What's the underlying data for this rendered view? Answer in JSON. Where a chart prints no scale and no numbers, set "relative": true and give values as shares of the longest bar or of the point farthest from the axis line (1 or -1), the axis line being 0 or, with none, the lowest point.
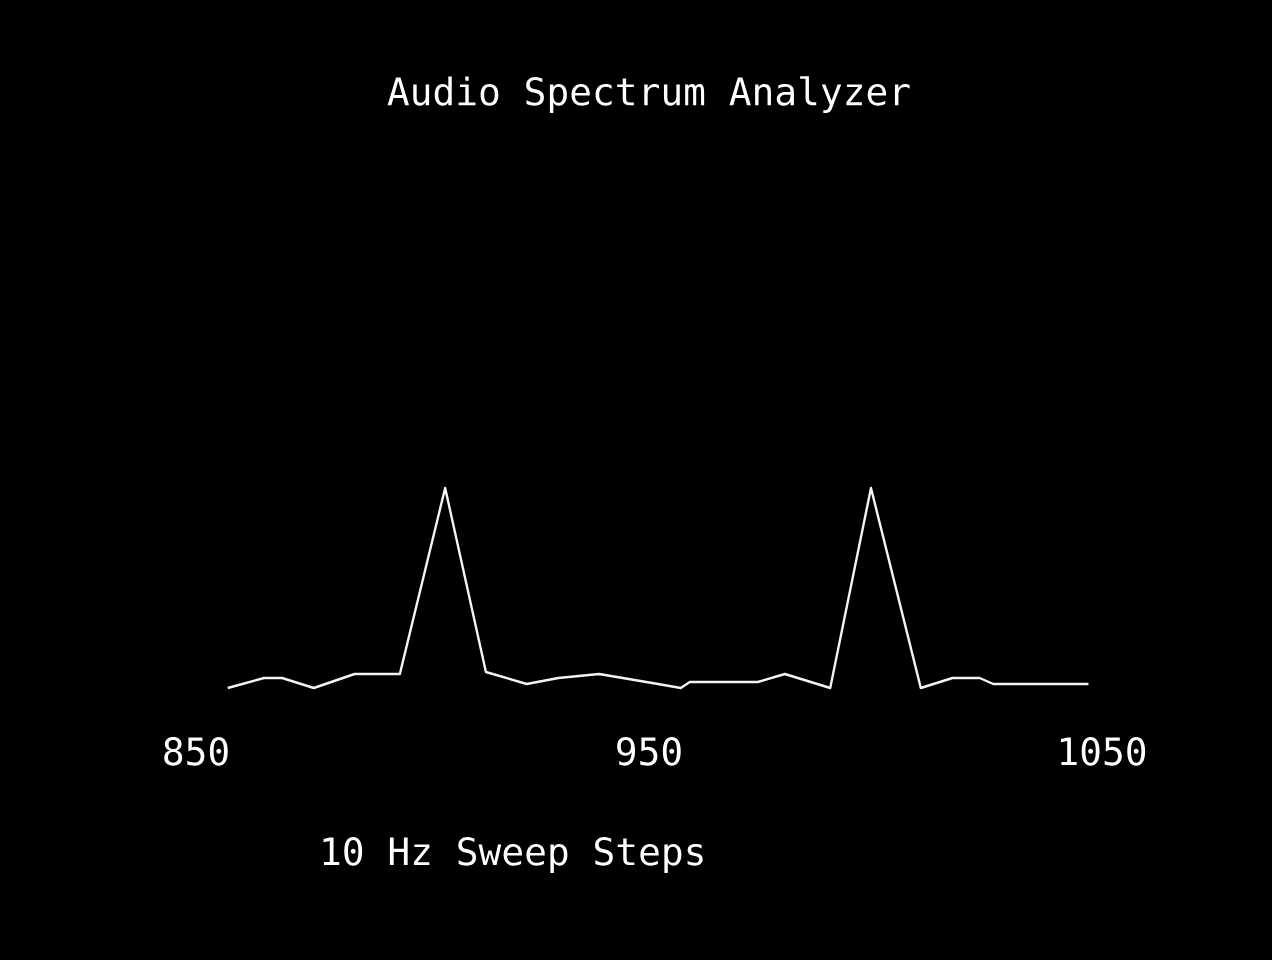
{
  "chart_data": {
    "type": "line",
    "title": "Audio Spectrum Analyzer",
    "xlabel": "10 Hz Sweep Steps",
    "relative": true,
    "x": [
      857,
      865,
      869,
      876,
      885,
      895,
      905,
      914,
      923,
      930,
      939,
      952,
      957,
      959,
      974,
      980,
      990,
      999,
      1010,
      1017,
      1023,
      1026,
      1047
    ],
    "values": [
      0,
      0.05,
      0.05,
      0,
      0.07,
      0.07,
      1,
      0.08,
      0.02,
      0.05,
      0.07,
      0.02,
      0,
      0.03,
      0.03,
      0.07,
      0,
      1,
      0,
      0.05,
      0.05,
      0.02,
      0.02
    ],
    "color": "#f4f4f4",
    "xlim": [
      850,
      1050
    ],
    "xticks": [
      850,
      950,
      1050
    ]
  }
}
